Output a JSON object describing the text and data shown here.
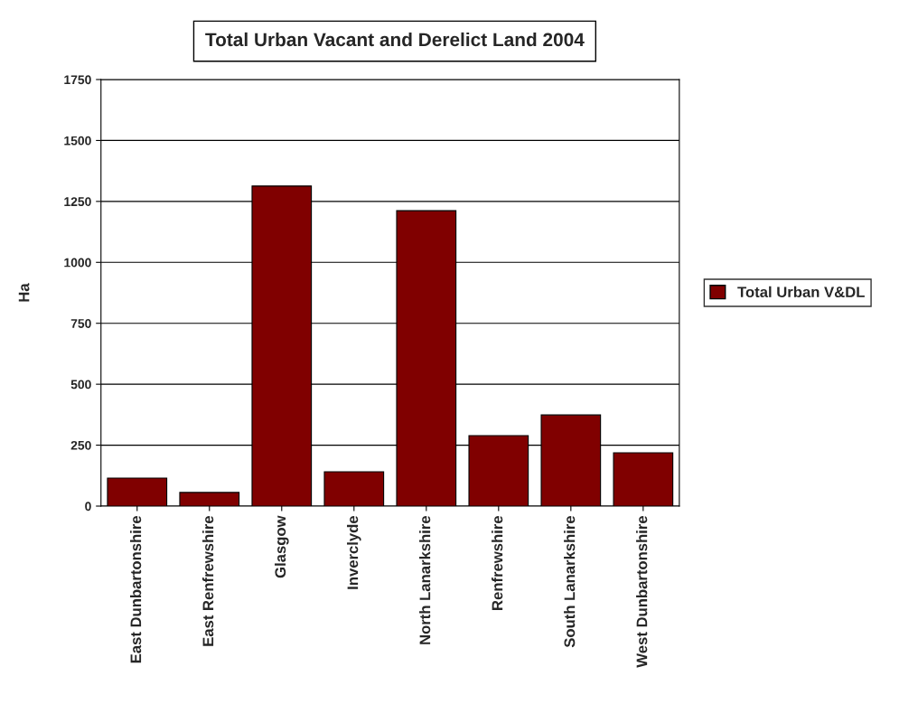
{
  "chart_data": {
    "type": "bar",
    "title": "Total Urban Vacant and Derelict Land 2004",
    "ylabel": "Ha",
    "categories": [
      "East Dunbartonshire",
      "East Renfrewshire",
      "Glasgow",
      "Inverclyde",
      "North Lanarkshire",
      "Renfrewshire",
      "South Lanarkshire",
      "West Dunbartonshire"
    ],
    "series": [
      {
        "name": "Total Urban V&DL",
        "color": "#800000",
        "values": [
          115,
          56,
          1313,
          141,
          1212,
          289,
          374,
          219
        ]
      }
    ],
    "ylim": [
      0,
      1750
    ],
    "yticks": [
      0,
      250,
      500,
      750,
      1000,
      1250,
      1500,
      1750
    ],
    "grid": "y",
    "legend": "right"
  }
}
